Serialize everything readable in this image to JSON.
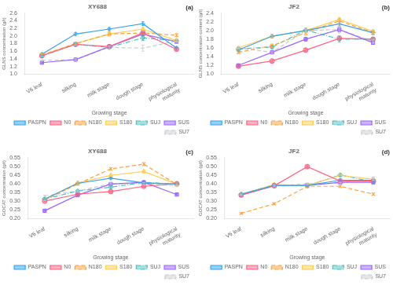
{
  "chart_data": [
    {
      "type": "line",
      "title": "XY688",
      "annotations": [
        "(a)"
      ],
      "xlabel": "Growing stage",
      "ylabel": "GLNS concentration (g/t)",
      "categories": [
        "V6 leaf",
        "silking",
        "milk stage",
        "dough stage",
        "physiological\nmaturity"
      ],
      "ylim": [
        1.0,
        2.6
      ],
      "yticks": [
        {
          "value": 1.0,
          "label": "1.0"
        },
        1.2,
        1.4,
        1.6,
        1.8,
        {
          "value": 2.0,
          "label": "2.0"
        },
        2.2,
        2.4,
        2.6
      ],
      "grid": false,
      "legend": "lower right",
      "series": [
        {
          "name": "PASPN",
          "values": [
            1.52,
            2.05,
            2.18,
            2.32,
            1.68
          ],
          "errors": [
            0.03,
            0.04,
            0.04,
            0.05,
            0.04
          ],
          "marker": "plus",
          "line_style": "solid"
        },
        {
          "name": "N0",
          "values": [
            1.48,
            1.78,
            1.72,
            2.08,
            1.65
          ],
          "errors": [
            0.03,
            0.04,
            0.04,
            0.05,
            0.03
          ],
          "marker": "circle",
          "line_style": "solid"
        },
        {
          "name": "N180",
          "values": [
            1.5,
            1.8,
            2.05,
            2.08,
            2.02
          ],
          "errors": [
            0.03,
            0.04,
            0.05,
            0.06,
            0.04
          ],
          "marker": "x",
          "line_style": "dashed"
        },
        {
          "name": "S180",
          "values": [
            1.5,
            1.8,
            2.05,
            2.18,
            1.88
          ],
          "errors": [
            0.03,
            0.04,
            0.05,
            0.04,
            0.04
          ],
          "marker": "triangle",
          "line_style": "solid"
        },
        {
          "name": "SUJ",
          "values": [
            1.48,
            1.78,
            1.7,
            1.95,
            1.87
          ],
          "errors": [
            0.03,
            0.04,
            0.04,
            0.07,
            0.04
          ],
          "marker": "diamond",
          "line_style": "dashdot"
        },
        {
          "name": "SUS",
          "values": [
            1.3,
            1.38,
            1.72,
            2.05,
            1.85
          ],
          "errors": [
            0.02,
            0.02,
            0.04,
            0.05,
            0.03
          ],
          "marker": "square",
          "line_style": "solid"
        },
        {
          "name": "SU7",
          "values": [
            1.36,
            1.38,
            1.7,
            1.68,
            1.87
          ],
          "errors": [
            0.02,
            0.02,
            0.04,
            0.08,
            0.04
          ],
          "marker": "none",
          "line_style": "dashed"
        }
      ]
    },
    {
      "type": "line",
      "title": "JF2",
      "annotations": [
        "(b)"
      ],
      "xlabel": "Growing stage",
      "ylabel": "GLNS concentration content (g/t)",
      "categories": [
        "V6 leaf",
        "silking",
        "milk stage",
        "dough stage",
        "physiological\nmaturity"
      ],
      "ylim": [
        1.0,
        2.4
      ],
      "yticks": [
        {
          "value": 1.0,
          "label": "1.0"
        },
        1.2,
        1.4,
        1.6,
        1.8,
        {
          "value": 2.0,
          "label": "2.0"
        },
        2.2,
        2.4
      ],
      "grid": false,
      "legend": "lower right",
      "series": [
        {
          "name": "PASPN",
          "values": [
            1.55,
            1.87,
            2.0,
            2.15,
            1.95
          ],
          "errors": [
            0.03,
            0.04,
            0.04,
            0.05,
            0.04
          ],
          "marker": "plus",
          "line_style": "solid"
        },
        {
          "name": "N0",
          "values": [
            1.18,
            1.3,
            1.55,
            1.82,
            1.8
          ],
          "errors": [
            0.03,
            0.04,
            0.04,
            0.05,
            0.03
          ],
          "marker": "circle",
          "line_style": "solid"
        },
        {
          "name": "N180",
          "values": [
            1.5,
            1.65,
            1.95,
            2.22,
            1.95
          ],
          "errors": [
            0.03,
            0.04,
            0.05,
            0.06,
            0.04
          ],
          "marker": "x",
          "line_style": "dashed"
        },
        {
          "name": "S180",
          "values": [
            1.6,
            1.87,
            2.0,
            2.25,
            1.98
          ],
          "errors": [
            0.03,
            0.04,
            0.05,
            0.04,
            0.04
          ],
          "marker": "triangle",
          "line_style": "solid"
        },
        {
          "name": "SUJ",
          "values": [
            1.58,
            1.62,
            2.01,
            1.8,
            1.8
          ],
          "errors": [
            0.03,
            0.04,
            0.04,
            0.07,
            0.04
          ],
          "marker": "diamond",
          "line_style": "dashdot"
        },
        {
          "name": "SUS",
          "values": [
            1.2,
            1.5,
            1.8,
            2.02,
            1.72
          ],
          "errors": [
            0.02,
            0.02,
            0.04,
            0.05,
            0.03
          ],
          "marker": "square",
          "line_style": "solid"
        },
        {
          "name": "SU7",
          "values": [
            1.6,
            1.5,
            2.0,
            2.02,
            1.75
          ],
          "errors": [
            0.02,
            0.02,
            0.04,
            0.08,
            0.04
          ],
          "marker": "none",
          "line_style": "dashed"
        }
      ]
    },
    {
      "type": "line",
      "title": "XY688",
      "annotations": [
        "(c)"
      ],
      "xlabel": "Growing stage",
      "ylabel": "GOCAT concentration (g/t)",
      "categories": [
        "V6 leaf",
        "silking",
        "milk stage",
        "dough stage",
        "physiological\nmaturity"
      ],
      "ylim": [
        0.2,
        0.55
      ],
      "yticks": [
        {
          "value": 0.2,
          "label": "0.20"
        },
        0.25,
        {
          "value": 0.3,
          "label": "0.30"
        },
        0.35,
        {
          "value": 0.4,
          "label": "0.40"
        },
        0.45,
        {
          "value": 0.5,
          "label": "0.50"
        },
        0.55
      ],
      "grid": false,
      "legend": "lower right",
      "series": [
        {
          "name": "PASPN",
          "values": [
            0.312,
            0.402,
            0.432,
            0.405,
            0.398
          ],
          "errors": [
            0.005,
            0.006,
            0.006,
            0.007,
            0.005
          ],
          "marker": "plus",
          "line_style": "solid"
        },
        {
          "name": "N0",
          "values": [
            0.3,
            0.34,
            0.355,
            0.385,
            0.4
          ],
          "errors": [
            0.004,
            0.005,
            0.005,
            0.006,
            0.005
          ],
          "marker": "circle",
          "line_style": "solid"
        },
        {
          "name": "N180",
          "values": [
            0.308,
            0.398,
            0.485,
            0.512,
            0.395
          ],
          "errors": [
            0.005,
            0.006,
            0.008,
            0.009,
            0.006
          ],
          "marker": "x",
          "line_style": "dashed"
        },
        {
          "name": "S180",
          "values": [
            0.308,
            0.405,
            0.448,
            0.47,
            0.398
          ],
          "errors": [
            0.005,
            0.007,
            0.007,
            0.008,
            0.006
          ],
          "marker": "triangle",
          "line_style": "solid"
        },
        {
          "name": "SUJ",
          "values": [
            0.312,
            0.358,
            0.38,
            0.408,
            0.398
          ],
          "errors": [
            0.005,
            0.006,
            0.006,
            0.007,
            0.005
          ],
          "marker": "diamond",
          "line_style": "dashdot"
        },
        {
          "name": "SUS",
          "values": [
            0.245,
            0.335,
            0.398,
            0.408,
            0.338
          ],
          "errors": [
            0.004,
            0.005,
            0.006,
            0.007,
            0.005
          ],
          "marker": "square",
          "line_style": "solid"
        },
        {
          "name": "SU7",
          "values": [
            0.33,
            0.358,
            0.4,
            0.4,
            0.388
          ],
          "errors": [
            0.004,
            0.005,
            0.005,
            0.006,
            0.005
          ],
          "marker": "none",
          "line_style": "dashed"
        }
      ]
    },
    {
      "type": "line",
      "title": "JF2",
      "annotations": [
        "(d)"
      ],
      "xlabel": "Growing stage",
      "ylabel": "GOCAT concentration (g/t)",
      "categories": [
        "V6 leaf",
        "silking",
        "milk stage",
        "dough stage",
        "physiological\nmaturity"
      ],
      "ylim": [
        0.2,
        0.55
      ],
      "yticks": [
        {
          "value": 0.2,
          "label": "0.20"
        },
        0.25,
        {
          "value": 0.3,
          "label": "0.30"
        },
        0.35,
        {
          "value": 0.4,
          "label": "0.40"
        },
        0.45,
        {
          "value": 0.5,
          "label": "0.50"
        },
        0.55
      ],
      "grid": false,
      "legend": "lower right",
      "series": [
        {
          "name": "PASPN",
          "values": [
            0.34,
            0.39,
            0.39,
            0.42,
            0.42
          ],
          "errors": [
            0.005,
            0.006,
            0.006,
            0.007,
            0.005
          ],
          "marker": "plus",
          "line_style": "solid"
        },
        {
          "name": "N0",
          "values": [
            0.335,
            0.388,
            0.498,
            0.415,
            0.415
          ],
          "errors": [
            0.005,
            0.006,
            0.01,
            0.007,
            0.006
          ],
          "marker": "circle",
          "line_style": "solid"
        },
        {
          "name": "N180",
          "values": [
            0.23,
            0.285,
            0.385,
            0.385,
            0.34
          ],
          "errors": [
            0.005,
            0.006,
            0.008,
            0.007,
            0.006
          ],
          "marker": "x",
          "line_style": "dashed"
        },
        {
          "name": "S180",
          "values": [
            0.34,
            0.395,
            0.39,
            0.448,
            0.425
          ],
          "errors": [
            0.005,
            0.006,
            0.006,
            0.008,
            0.006
          ],
          "marker": "triangle",
          "line_style": "solid"
        },
        {
          "name": "SUJ",
          "values": [
            0.34,
            0.395,
            0.388,
            0.45,
            0.41
          ],
          "errors": [
            0.005,
            0.006,
            0.006,
            0.008,
            0.005
          ],
          "marker": "diamond",
          "line_style": "dashdot"
        },
        {
          "name": "SUS",
          "values": [
            0.335,
            0.39,
            0.39,
            0.408,
            0.408
          ],
          "errors": [
            0.004,
            0.005,
            0.005,
            0.007,
            0.005
          ],
          "marker": "square",
          "line_style": "solid"
        },
        {
          "name": "SU7",
          "values": [
            0.335,
            0.388,
            0.4,
            0.402,
            0.435
          ],
          "errors": [
            0.004,
            0.005,
            0.005,
            0.006,
            0.005
          ],
          "marker": "none",
          "line_style": "dashed"
        }
      ]
    }
  ]
}
